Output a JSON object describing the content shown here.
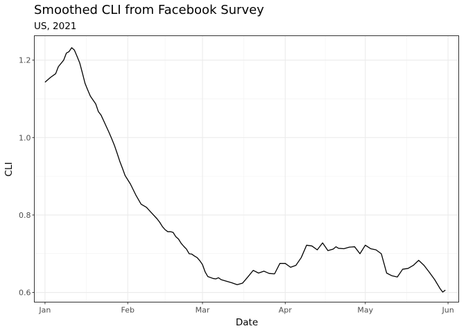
{
  "chart_data": {
    "type": "line",
    "title": "Smoothed CLI from Facebook Survey",
    "subtitle": "US, 2021",
    "xlabel": "Date",
    "ylabel": "CLI",
    "xlim": [
      "2020-12-28",
      "2021-06-05"
    ],
    "ylim": [
      0.575,
      1.263
    ],
    "x_ticks": [
      {
        "date": "2021-01-01",
        "label": "Jan"
      },
      {
        "date": "2021-02-01",
        "label": "Feb"
      },
      {
        "date": "2021-03-01",
        "label": "Mar"
      },
      {
        "date": "2021-04-01",
        "label": "Apr"
      },
      {
        "date": "2021-05-01",
        "label": "May"
      },
      {
        "date": "2021-06-01",
        "label": "Jun"
      }
    ],
    "y_ticks": [
      0.6,
      0.8,
      1.0,
      1.2
    ],
    "y_tick_labels": [
      "0.6",
      "0.8",
      "1.0",
      "1.2"
    ],
    "grid": true,
    "line_color": "#000000",
    "series": [
      {
        "x": [
          "2021-01-01",
          "2021-01-03",
          "2021-01-05",
          "2021-01-06",
          "2021-01-08",
          "2021-01-09",
          "2021-01-10",
          "2021-01-11",
          "2021-01-12",
          "2021-01-13",
          "2021-01-14",
          "2021-01-15",
          "2021-01-16",
          "2021-01-17",
          "2021-01-18",
          "2021-01-20",
          "2021-01-21",
          "2021-01-22",
          "2021-01-23",
          "2021-01-24",
          "2021-01-25",
          "2021-01-26",
          "2021-01-27",
          "2021-01-28",
          "2021-01-29",
          "2021-01-30",
          "2021-01-31",
          "2021-02-02",
          "2021-02-04",
          "2021-02-06",
          "2021-02-08",
          "2021-02-10",
          "2021-02-12",
          "2021-02-13",
          "2021-02-14",
          "2021-02-15",
          "2021-02-16",
          "2021-02-17",
          "2021-02-18",
          "2021-02-19",
          "2021-02-20",
          "2021-02-21",
          "2021-02-22",
          "2021-02-23",
          "2021-02-24",
          "2021-02-25",
          "2021-02-26",
          "2021-02-27",
          "2021-02-28",
          "2021-03-01",
          "2021-03-02",
          "2021-03-03",
          "2021-03-05",
          "2021-03-06",
          "2021-03-07",
          "2021-03-08",
          "2021-03-10",
          "2021-03-12",
          "2021-03-14",
          "2021-03-16",
          "2021-03-18",
          "2021-03-20",
          "2021-03-22",
          "2021-03-24",
          "2021-03-26",
          "2021-03-28",
          "2021-03-30",
          "2021-04-01",
          "2021-04-03",
          "2021-04-05",
          "2021-04-07",
          "2021-04-09",
          "2021-04-11",
          "2021-04-13",
          "2021-04-15",
          "2021-04-17",
          "2021-04-19",
          "2021-04-20",
          "2021-04-21",
          "2021-04-23",
          "2021-04-25",
          "2021-04-27",
          "2021-04-29",
          "2021-05-01",
          "2021-05-03",
          "2021-05-05",
          "2021-05-07",
          "2021-05-09",
          "2021-05-11",
          "2021-05-13",
          "2021-05-15",
          "2021-05-17",
          "2021-05-19",
          "2021-05-21",
          "2021-05-23",
          "2021-05-25",
          "2021-05-27",
          "2021-05-29",
          "2021-05-30",
          "2021-05-31"
        ],
        "y": [
          1.143,
          1.155,
          1.165,
          1.183,
          1.2,
          1.218,
          1.222,
          1.232,
          1.226,
          1.21,
          1.193,
          1.167,
          1.14,
          1.123,
          1.107,
          1.087,
          1.067,
          1.058,
          1.043,
          1.028,
          1.013,
          0.997,
          0.98,
          0.96,
          0.939,
          0.921,
          0.902,
          0.88,
          0.852,
          0.828,
          0.82,
          0.805,
          0.79,
          0.781,
          0.77,
          0.762,
          0.757,
          0.757,
          0.755,
          0.744,
          0.738,
          0.727,
          0.719,
          0.712,
          0.7,
          0.699,
          0.694,
          0.69,
          0.682,
          0.672,
          0.653,
          0.641,
          0.636,
          0.635,
          0.638,
          0.633,
          0.629,
          0.625,
          0.62,
          0.624,
          0.64,
          0.657,
          0.65,
          0.655,
          0.649,
          0.648,
          0.675,
          0.675,
          0.665,
          0.67,
          0.69,
          0.722,
          0.72,
          0.71,
          0.728,
          0.708,
          0.712,
          0.718,
          0.714,
          0.713,
          0.717,
          0.718,
          0.7,
          0.722,
          0.713,
          0.71,
          0.7,
          0.65,
          0.643,
          0.64,
          0.66,
          0.662,
          0.67,
          0.683,
          0.67,
          0.652,
          0.633,
          0.61,
          0.601,
          0.606
        ]
      }
    ]
  }
}
